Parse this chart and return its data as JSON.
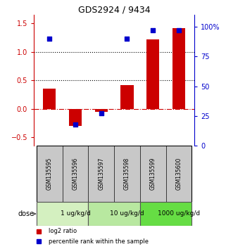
{
  "title": "GDS2924 / 9434",
  "samples": [
    "GSM135595",
    "GSM135596",
    "GSM135597",
    "GSM135598",
    "GSM135599",
    "GSM135600"
  ],
  "log2_ratio": [
    0.35,
    -0.3,
    -0.05,
    0.42,
    1.22,
    1.42
  ],
  "percentile": [
    90,
    18,
    27,
    90,
    97,
    97
  ],
  "dose_groups": [
    {
      "label": "1 ug/kg/d",
      "start": 0,
      "end": 2,
      "color": "#d4f0c0"
    },
    {
      "label": "10 ug/kg/d",
      "start": 2,
      "end": 4,
      "color": "#b8e8a0"
    },
    {
      "label": "1000 ug/kg/d",
      "start": 4,
      "end": 6,
      "color": "#66dd44"
    }
  ],
  "bar_color": "#cc0000",
  "dot_color": "#0000cc",
  "ylim_left": [
    -0.65,
    1.65
  ],
  "ylim_right": [
    0,
    110
  ],
  "yticks_left": [
    -0.5,
    0.0,
    0.5,
    1.0,
    1.5
  ],
  "yticks_right": [
    0,
    25,
    50,
    75,
    100
  ],
  "hlines": [
    0.0,
    0.5,
    1.0
  ],
  "hline_styles": [
    "dashdot",
    "dotted",
    "dotted"
  ],
  "hline_colors": [
    "#cc0000",
    "#000000",
    "#000000"
  ],
  "background_color": "#ffffff",
  "sample_box_color": "#c8c8c8",
  "bar_width": 0.5,
  "dot_size": 22
}
